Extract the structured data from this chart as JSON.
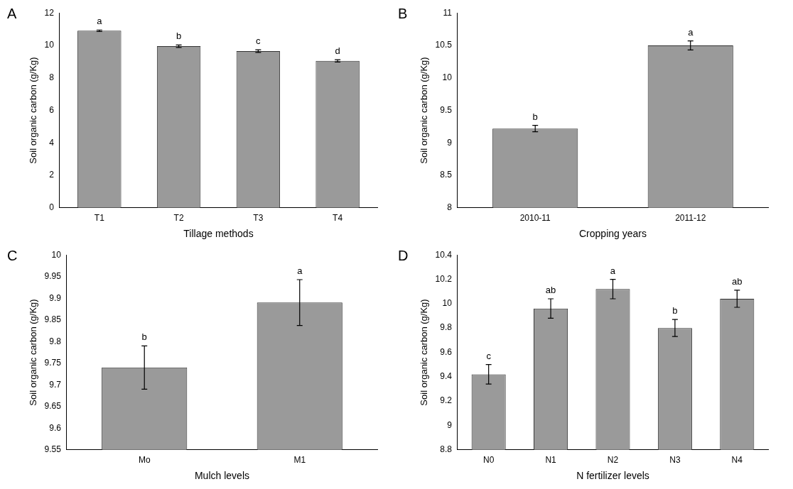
{
  "chart_data": [
    {
      "type": "bar",
      "title": "A",
      "xlabel": "Tillage methods",
      "ylabel": "Soil organic carbon (g/Kg)",
      "categories": [
        "T1",
        "T2",
        "T3",
        "T4"
      ],
      "values": [
        10.9,
        9.95,
        9.65,
        9.05
      ],
      "errors": [
        0.05,
        0.08,
        0.08,
        0.07
      ],
      "color": "#9a9a9a",
      "ylim": [
        0,
        12
      ],
      "yticks": [
        0,
        2,
        4,
        6,
        8,
        10,
        12
      ],
      "grid": false,
      "legend": false,
      "annotations": [
        {
          "text": "a",
          "x": "T1",
          "y": 10.95
        },
        {
          "text": "b",
          "x": "T2",
          "y": 10.03
        },
        {
          "text": "c",
          "x": "T3",
          "y": 9.73
        },
        {
          "text": "d",
          "x": "T4",
          "y": 9.12
        }
      ]
    },
    {
      "type": "bar",
      "title": "B",
      "xlabel": "Cropping years",
      "ylabel": "Soil organic carbon (g/Kg)",
      "categories": [
        "2010-11",
        "2011-12"
      ],
      "values": [
        9.22,
        10.5
      ],
      "errors": [
        0.05,
        0.07
      ],
      "color": "#9a9a9a",
      "ylim": [
        8,
        11
      ],
      "yticks": [
        8,
        8.5,
        9,
        9.5,
        10,
        10.5,
        11
      ],
      "grid": false,
      "legend": false,
      "annotations": [
        {
          "text": "b",
          "x": "2010-11",
          "y": 9.27
        },
        {
          "text": "a",
          "x": "2011-12",
          "y": 10.57
        }
      ]
    },
    {
      "type": "bar",
      "title": "C",
      "xlabel": "Mulch levels",
      "ylabel": "Soil organic carbon (g/Kg)",
      "categories": [
        "Mo",
        "M1"
      ],
      "values": [
        9.74,
        9.89
      ],
      "errors": [
        0.05,
        0.053
      ],
      "color": "#9a9a9a",
      "ylim": [
        9.55,
        10
      ],
      "yticks": [
        9.55,
        9.6,
        9.65,
        9.7,
        9.75,
        9.8,
        9.85,
        9.9,
        9.95,
        10
      ],
      "grid": false,
      "legend": false,
      "annotations": [
        {
          "text": "b",
          "x": "Mo",
          "y": 9.79
        },
        {
          "text": "a",
          "x": "M1",
          "y": 9.943
        }
      ]
    },
    {
      "type": "bar",
      "title": "D",
      "xlabel": "N fertilizer levels",
      "ylabel": "Soil organic carbon (g/Kg)",
      "categories": [
        "N0",
        "N1",
        "N2",
        "N3",
        "N4"
      ],
      "values": [
        9.42,
        9.96,
        10.12,
        9.8,
        10.04
      ],
      "errors": [
        0.08,
        0.08,
        0.08,
        0.07,
        0.07
      ],
      "color": "#9a9a9a",
      "ylim": [
        8.8,
        10.4
      ],
      "yticks": [
        8.8,
        9,
        9.2,
        9.4,
        9.6,
        9.8,
        10,
        10.2,
        10.4
      ],
      "grid": false,
      "legend": false,
      "annotations": [
        {
          "text": "c",
          "x": "N0",
          "y": 9.5
        },
        {
          "text": "ab",
          "x": "N1",
          "y": 10.04
        },
        {
          "text": "a",
          "x": "N2",
          "y": 10.2
        },
        {
          "text": "b",
          "x": "N3",
          "y": 9.87
        },
        {
          "text": "ab",
          "x": "N4",
          "y": 10.11
        }
      ]
    }
  ]
}
